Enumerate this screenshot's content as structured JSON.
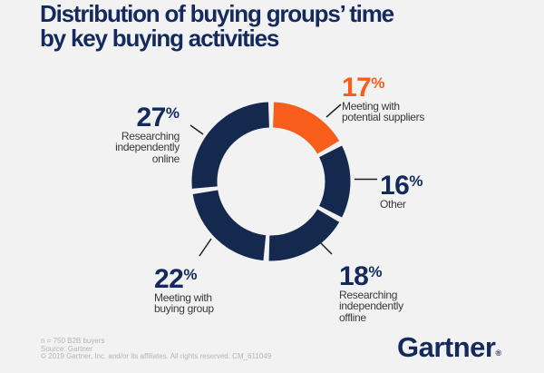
{
  "title": "Distribution of buying groups’ time\nby key buying activities",
  "colors": {
    "navy": "#15294E",
    "text_navy": "#142A5C",
    "orange": "#F95D1C",
    "background": "#F2F2F3",
    "callout_text": "#38383A",
    "footnote_gray": "#B5B5B7",
    "leader_line": "#1F1F23"
  },
  "chart_data": {
    "type": "pie",
    "subtype": "donut",
    "title": "Distribution of buying groups’ time by key buying activities",
    "unit": "%",
    "start_angle_deg": 0,
    "direction": "clockwise",
    "legend_position": "callouts-around-donut",
    "segments": [
      {
        "label": "Meeting with potential suppliers",
        "callout": "Meeting with\npotential suppliers",
        "value": 17,
        "unit": "%",
        "color": "#F95D1C"
      },
      {
        "label": "Other",
        "callout": "Other",
        "value": 16,
        "unit": "%",
        "color": "#15294E"
      },
      {
        "label": "Researching independently offline",
        "callout": "Researching\nindependently\noffline",
        "value": 18,
        "unit": "%",
        "color": "#15294E"
      },
      {
        "label": "Meeting with buying group",
        "callout": "Meeting with\nbuying group",
        "value": 22,
        "unit": "%",
        "color": "#15294E"
      },
      {
        "label": "Researching independently online",
        "callout": "Researching\nindependently\nonline",
        "value": 27,
        "unit": "%",
        "color": "#15294E"
      }
    ]
  },
  "footer": {
    "sample_note": "n = 750 B2B buyers",
    "source_note": "Source: Gartner",
    "copyright_note": "© 2019 Gartner, Inc. and/or its affiliates. All rights reserved. CM_611049"
  },
  "logo": {
    "text": "Gartner",
    "reg": "®"
  }
}
